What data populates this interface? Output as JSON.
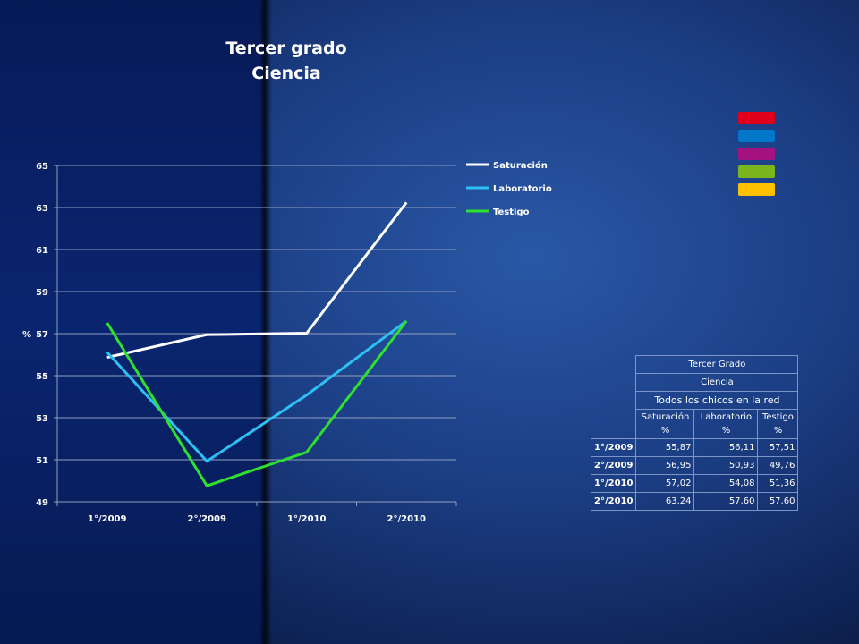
{
  "title": {
    "line1": "Tercer grado",
    "line2": "Ciencia"
  },
  "chart_data": {
    "type": "line",
    "categories": [
      "1°/2009",
      "2°/2009",
      "1°/2010",
      "2°/2010"
    ],
    "ylabel": "%",
    "ylim": [
      49,
      65
    ],
    "yticks": [
      49,
      51,
      53,
      55,
      57,
      59,
      61,
      63,
      65
    ],
    "grid": true,
    "legend_position": "right",
    "series": [
      {
        "name": "Saturación",
        "color": "#ffffff",
        "values": [
          55.87,
          56.95,
          57.02,
          63.24
        ]
      },
      {
        "name": "Laboratorio",
        "color": "#2ec0f2",
        "values": [
          56.11,
          50.93,
          54.08,
          57.6
        ]
      },
      {
        "name": "Testigo",
        "color": "#2fe02f",
        "values": [
          57.51,
          49.76,
          51.36,
          57.6
        ]
      }
    ]
  },
  "swatches": [
    "#e0001b",
    "#0077c8",
    "#a3127f",
    "#7ab51d",
    "#ffc000"
  ],
  "table": {
    "title": "Tercer Grado",
    "subject": "Ciencia",
    "group": "Todos los chicos en la red",
    "columns": [
      {
        "line1": "Saturación",
        "line2": "%"
      },
      {
        "line1": "Laboratorio",
        "line2": "%"
      },
      {
        "line1": "Testigo",
        "line2": "%"
      }
    ],
    "rows": [
      {
        "label": "1°/2009",
        "values": [
          "55,87",
          "56,11",
          "57,51"
        ]
      },
      {
        "label": "2°/2009",
        "values": [
          "56,95",
          "50,93",
          "49,76"
        ]
      },
      {
        "label": "1°/2010",
        "values": [
          "57,02",
          "54,08",
          "51,36"
        ]
      },
      {
        "label": "2°/2010",
        "values": [
          "63,24",
          "57,60",
          "57,60"
        ]
      }
    ]
  }
}
